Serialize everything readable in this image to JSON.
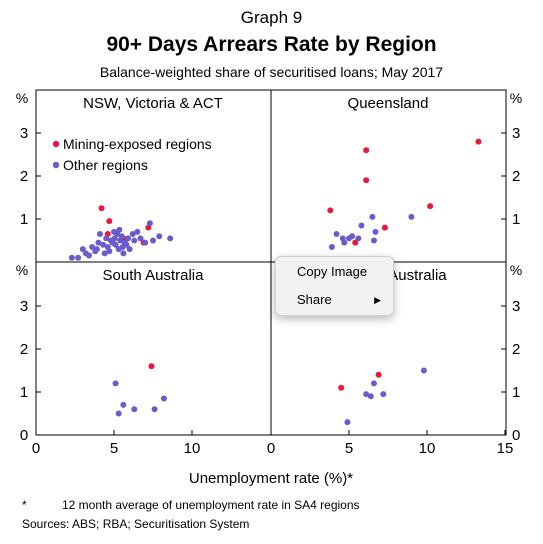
{
  "header": {
    "graph_number": "Graph 9",
    "title": "90+ Days Arrears Rate by Region",
    "subtitle": "Balance-weighted share of securitised loans; May 2017"
  },
  "footnote": {
    "marker": "*",
    "text": "12 month average of unemployment rate in SA4 regions"
  },
  "sources": "Sources:  ABS; RBA; Securitisation System",
  "context_menu": {
    "items": [
      {
        "label": "Copy Image",
        "has_submenu": false
      },
      {
        "label": "Share",
        "has_submenu": true
      }
    ]
  },
  "chart_data": {
    "type": "scatter",
    "xlabel": "Unemployment rate (%)*",
    "ylabel": "%",
    "xlim": [
      0,
      15
    ],
    "ylim": [
      0,
      3
    ],
    "x_ticks_left": [
      "0",
      "5",
      "10"
    ],
    "x_ticks_right": [
      "0",
      "5",
      "10",
      "15"
    ],
    "y_ticks": [
      "0",
      "1",
      "2",
      "3"
    ],
    "colors": {
      "Mining-exposed regions": "#e8173c",
      "Other regions": "#6a5ccc"
    },
    "legend": {
      "placement": "top-left of first panel",
      "entries": [
        "Mining-exposed regions",
        "Other regions"
      ]
    },
    "panels": [
      {
        "name": "NSW, Victoria & ACT",
        "series": [
          {
            "name": "Mining-exposed regions",
            "points": [
              [
                4.2,
                1.25
              ],
              [
                4.7,
                0.95
              ],
              [
                4.6,
                0.65
              ],
              [
                5.6,
                0.55
              ],
              [
                6.9,
                0.45
              ],
              [
                7.2,
                0.8
              ]
            ]
          },
          {
            "name": "Other regions",
            "points": [
              [
                2.3,
                0.1
              ],
              [
                2.7,
                0.1
              ],
              [
                3.0,
                0.3
              ],
              [
                3.2,
                0.2
              ],
              [
                3.4,
                0.15
              ],
              [
                3.6,
                0.35
              ],
              [
                3.8,
                0.25
              ],
              [
                3.9,
                0.3
              ],
              [
                4.0,
                0.45
              ],
              [
                4.1,
                0.65
              ],
              [
                4.3,
                0.4
              ],
              [
                4.4,
                0.2
              ],
              [
                4.5,
                0.55
              ],
              [
                4.6,
                0.35
              ],
              [
                4.7,
                0.25
              ],
              [
                4.8,
                0.5
              ],
              [
                4.9,
                0.45
              ],
              [
                5.0,
                0.7
              ],
              [
                5.05,
                0.55
              ],
              [
                5.1,
                0.4
              ],
              [
                5.2,
                0.65
              ],
              [
                5.3,
                0.3
              ],
              [
                5.35,
                0.75
              ],
              [
                5.4,
                0.5
              ],
              [
                5.5,
                0.6
              ],
              [
                5.55,
                0.35
              ],
              [
                5.6,
                0.2
              ],
              [
                5.7,
                0.45
              ],
              [
                5.8,
                0.4
              ],
              [
                5.9,
                0.55
              ],
              [
                6.0,
                0.3
              ],
              [
                6.2,
                0.65
              ],
              [
                6.3,
                0.5
              ],
              [
                6.5,
                0.7
              ],
              [
                6.7,
                0.55
              ],
              [
                7.0,
                0.45
              ],
              [
                7.3,
                0.9
              ],
              [
                7.5,
                0.5
              ],
              [
                7.9,
                0.6
              ],
              [
                8.6,
                0.55
              ]
            ]
          }
        ]
      },
      {
        "name": "Queensland",
        "series": [
          {
            "name": "Mining-exposed regions",
            "points": [
              [
                3.8,
                1.2
              ],
              [
                5.4,
                0.45
              ],
              [
                6.1,
                2.6
              ],
              [
                6.1,
                1.9
              ],
              [
                7.3,
                0.8
              ],
              [
                10.2,
                1.3
              ],
              [
                13.3,
                2.8
              ]
            ]
          },
          {
            "name": "Other regions",
            "points": [
              [
                3.9,
                0.35
              ],
              [
                4.2,
                0.65
              ],
              [
                4.6,
                0.55
              ],
              [
                4.7,
                0.45
              ],
              [
                5.0,
                0.55
              ],
              [
                5.2,
                0.6
              ],
              [
                5.6,
                0.55
              ],
              [
                5.8,
                0.85
              ],
              [
                6.5,
                1.05
              ],
              [
                6.6,
                0.5
              ],
              [
                6.7,
                0.7
              ],
              [
                9.0,
                1.05
              ]
            ]
          }
        ]
      },
      {
        "name": "South Australia",
        "series": [
          {
            "name": "Mining-exposed regions",
            "points": [
              [
                7.4,
                1.6
              ]
            ]
          },
          {
            "name": "Other regions",
            "points": [
              [
                5.1,
                1.2
              ],
              [
                5.3,
                0.5
              ],
              [
                5.6,
                0.7
              ],
              [
                6.3,
                0.6
              ],
              [
                7.6,
                0.6
              ],
              [
                8.2,
                0.85
              ]
            ]
          }
        ]
      },
      {
        "name": "Western Australia",
        "series": [
          {
            "name": "Mining-exposed regions",
            "points": [
              [
                4.5,
                1.1
              ],
              [
                6.9,
                1.4
              ]
            ]
          },
          {
            "name": "Other regions",
            "points": [
              [
                4.9,
                0.3
              ],
              [
                6.1,
                0.95
              ],
              [
                6.4,
                0.9
              ],
              [
                6.6,
                1.2
              ],
              [
                7.2,
                0.95
              ],
              [
                9.8,
                1.5
              ]
            ]
          }
        ]
      }
    ]
  }
}
